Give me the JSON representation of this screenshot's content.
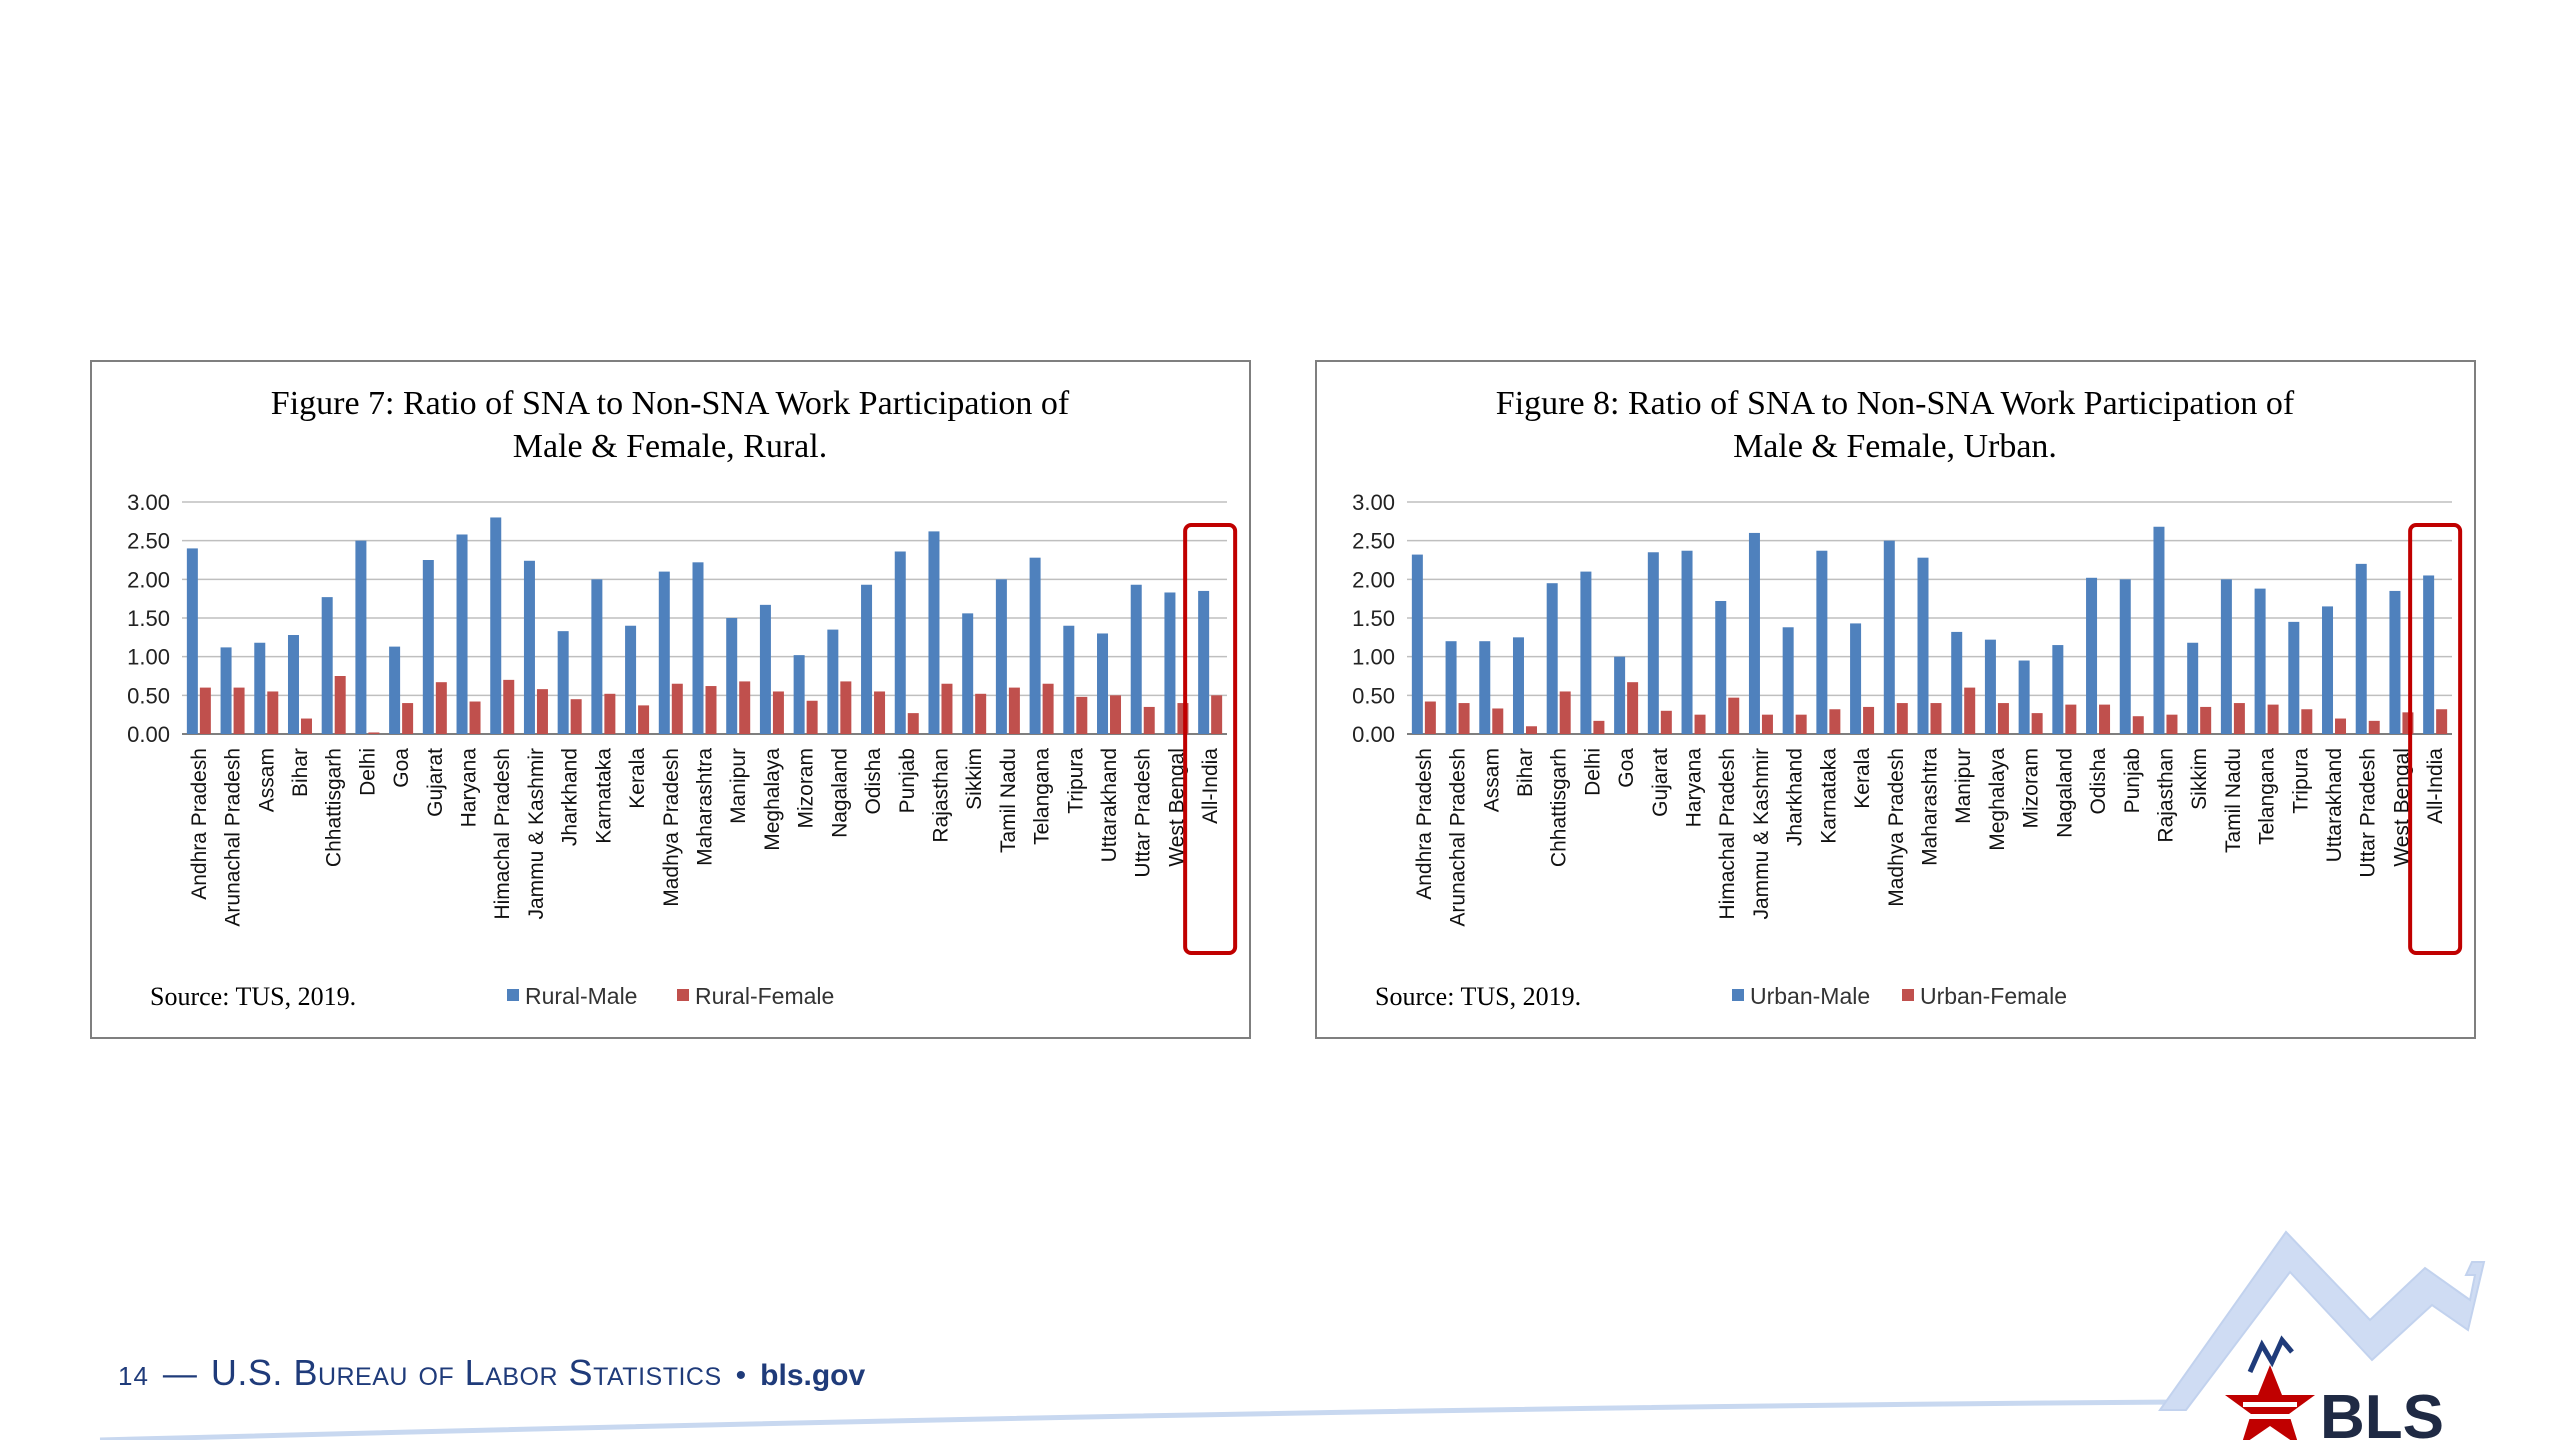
{
  "footer": {
    "page_number": "14",
    "separator": "—",
    "organization": "U.S. Bureau of Labor Statistics",
    "bullet": "•",
    "site": "bls.gov"
  },
  "logo": {
    "text": "BLS",
    "icon": "bls-star-logo-icon"
  },
  "colors": {
    "male_bar": "#4f81bd",
    "female_bar": "#c0504d",
    "highlight": "#c00000",
    "footer_text": "#1f3b7a",
    "logo_chevron": "#c8d8f0"
  },
  "chart_data": [
    {
      "type": "bar",
      "title_line1": "Figure 7: Ratio of SNA to Non-SNA Work Participation of",
      "title_line2": "Male & Female, Rural.",
      "source": "Source: TUS, 2019.",
      "ylim": [
        0,
        3
      ],
      "yticks": [
        "0.00",
        "0.50",
        "1.00",
        "1.50",
        "2.00",
        "2.50",
        "3.00"
      ],
      "categories": [
        "Andhra Pradesh",
        "Arunachal Pradesh",
        "Assam",
        "Bihar",
        "Chhattisgarh",
        "Delhi",
        "Goa",
        "Gujarat",
        "Haryana",
        "Himachal Pradesh",
        "Jammu & Kashmir",
        "Jharkhand",
        "Karnataka",
        "Kerala",
        "Madhya Pradesh",
        "Maharashtra",
        "Manipur",
        "Meghalaya",
        "Mizoram",
        "Nagaland",
        "Odisha",
        "Punjab",
        "Rajasthan",
        "Sikkim",
        "Tamil Nadu",
        "Telangana",
        "Tripura",
        "Uttarakhand",
        "Uttar Pradesh",
        "West Bengal",
        "All-India"
      ],
      "series": [
        {
          "name": "Rural-Male",
          "values": [
            2.4,
            1.12,
            1.18,
            1.28,
            1.77,
            2.5,
            1.13,
            2.25,
            2.58,
            2.8,
            2.24,
            1.33,
            2.0,
            1.4,
            2.1,
            2.22,
            1.5,
            1.67,
            1.02,
            1.35,
            1.93,
            2.36,
            2.62,
            1.56,
            2.0,
            2.28,
            1.4,
            1.3,
            1.93,
            1.83,
            1.85
          ]
        },
        {
          "name": "Rural-Female",
          "values": [
            0.6,
            0.6,
            0.55,
            0.2,
            0.75,
            0.02,
            0.4,
            0.67,
            0.42,
            0.7,
            0.58,
            0.45,
            0.52,
            0.37,
            0.65,
            0.62,
            0.68,
            0.55,
            0.43,
            0.68,
            0.55,
            0.27,
            0.65,
            0.52,
            0.6,
            0.65,
            0.48,
            0.5,
            0.35,
            0.4,
            0.5
          ]
        }
      ],
      "highlight_category": "All-India"
    },
    {
      "type": "bar",
      "title_line1": "Figure 8: Ratio of SNA to Non-SNA Work Participation of",
      "title_line2": "Male & Female, Urban.",
      "source": "Source: TUS, 2019.",
      "ylim": [
        0,
        3
      ],
      "yticks": [
        "0.00",
        "0.50",
        "1.00",
        "1.50",
        "2.00",
        "2.50",
        "3.00"
      ],
      "categories": [
        "Andhra Pradesh",
        "Arunachal Pradesh",
        "Assam",
        "Bihar",
        "Chhattisgarh",
        "Delhi",
        "Goa",
        "Gujarat",
        "Haryana",
        "Himachal Pradesh",
        "Jammu & Kashmir",
        "Jharkhand",
        "Karnataka",
        "Kerala",
        "Madhya Pradesh",
        "Maharashtra",
        "Manipur",
        "Meghalaya",
        "Mizoram",
        "Nagaland",
        "Odisha",
        "Punjab",
        "Rajasthan",
        "Sikkim",
        "Tamil Nadu",
        "Telangana",
        "Tripura",
        "Uttarakhand",
        "Uttar Pradesh",
        "West Bengal",
        "All-India"
      ],
      "series": [
        {
          "name": "Urban-Male",
          "values": [
            2.32,
            1.2,
            1.2,
            1.25,
            1.95,
            2.1,
            1.0,
            2.35,
            2.37,
            1.72,
            2.6,
            1.38,
            2.37,
            1.43,
            2.5,
            2.28,
            1.32,
            1.22,
            0.95,
            1.15,
            2.02,
            2.0,
            2.68,
            1.18,
            2.0,
            1.88,
            1.45,
            1.65,
            2.2,
            1.85,
            2.05
          ]
        },
        {
          "name": "Urban-Female",
          "values": [
            0.42,
            0.4,
            0.33,
            0.1,
            0.55,
            0.17,
            0.67,
            0.3,
            0.25,
            0.47,
            0.25,
            0.25,
            0.32,
            0.35,
            0.4,
            0.4,
            0.6,
            0.4,
            0.27,
            0.38,
            0.38,
            0.23,
            0.25,
            0.35,
            0.4,
            0.38,
            0.32,
            0.2,
            0.17,
            0.28,
            0.32
          ]
        }
      ],
      "highlight_category": "All-India"
    }
  ]
}
